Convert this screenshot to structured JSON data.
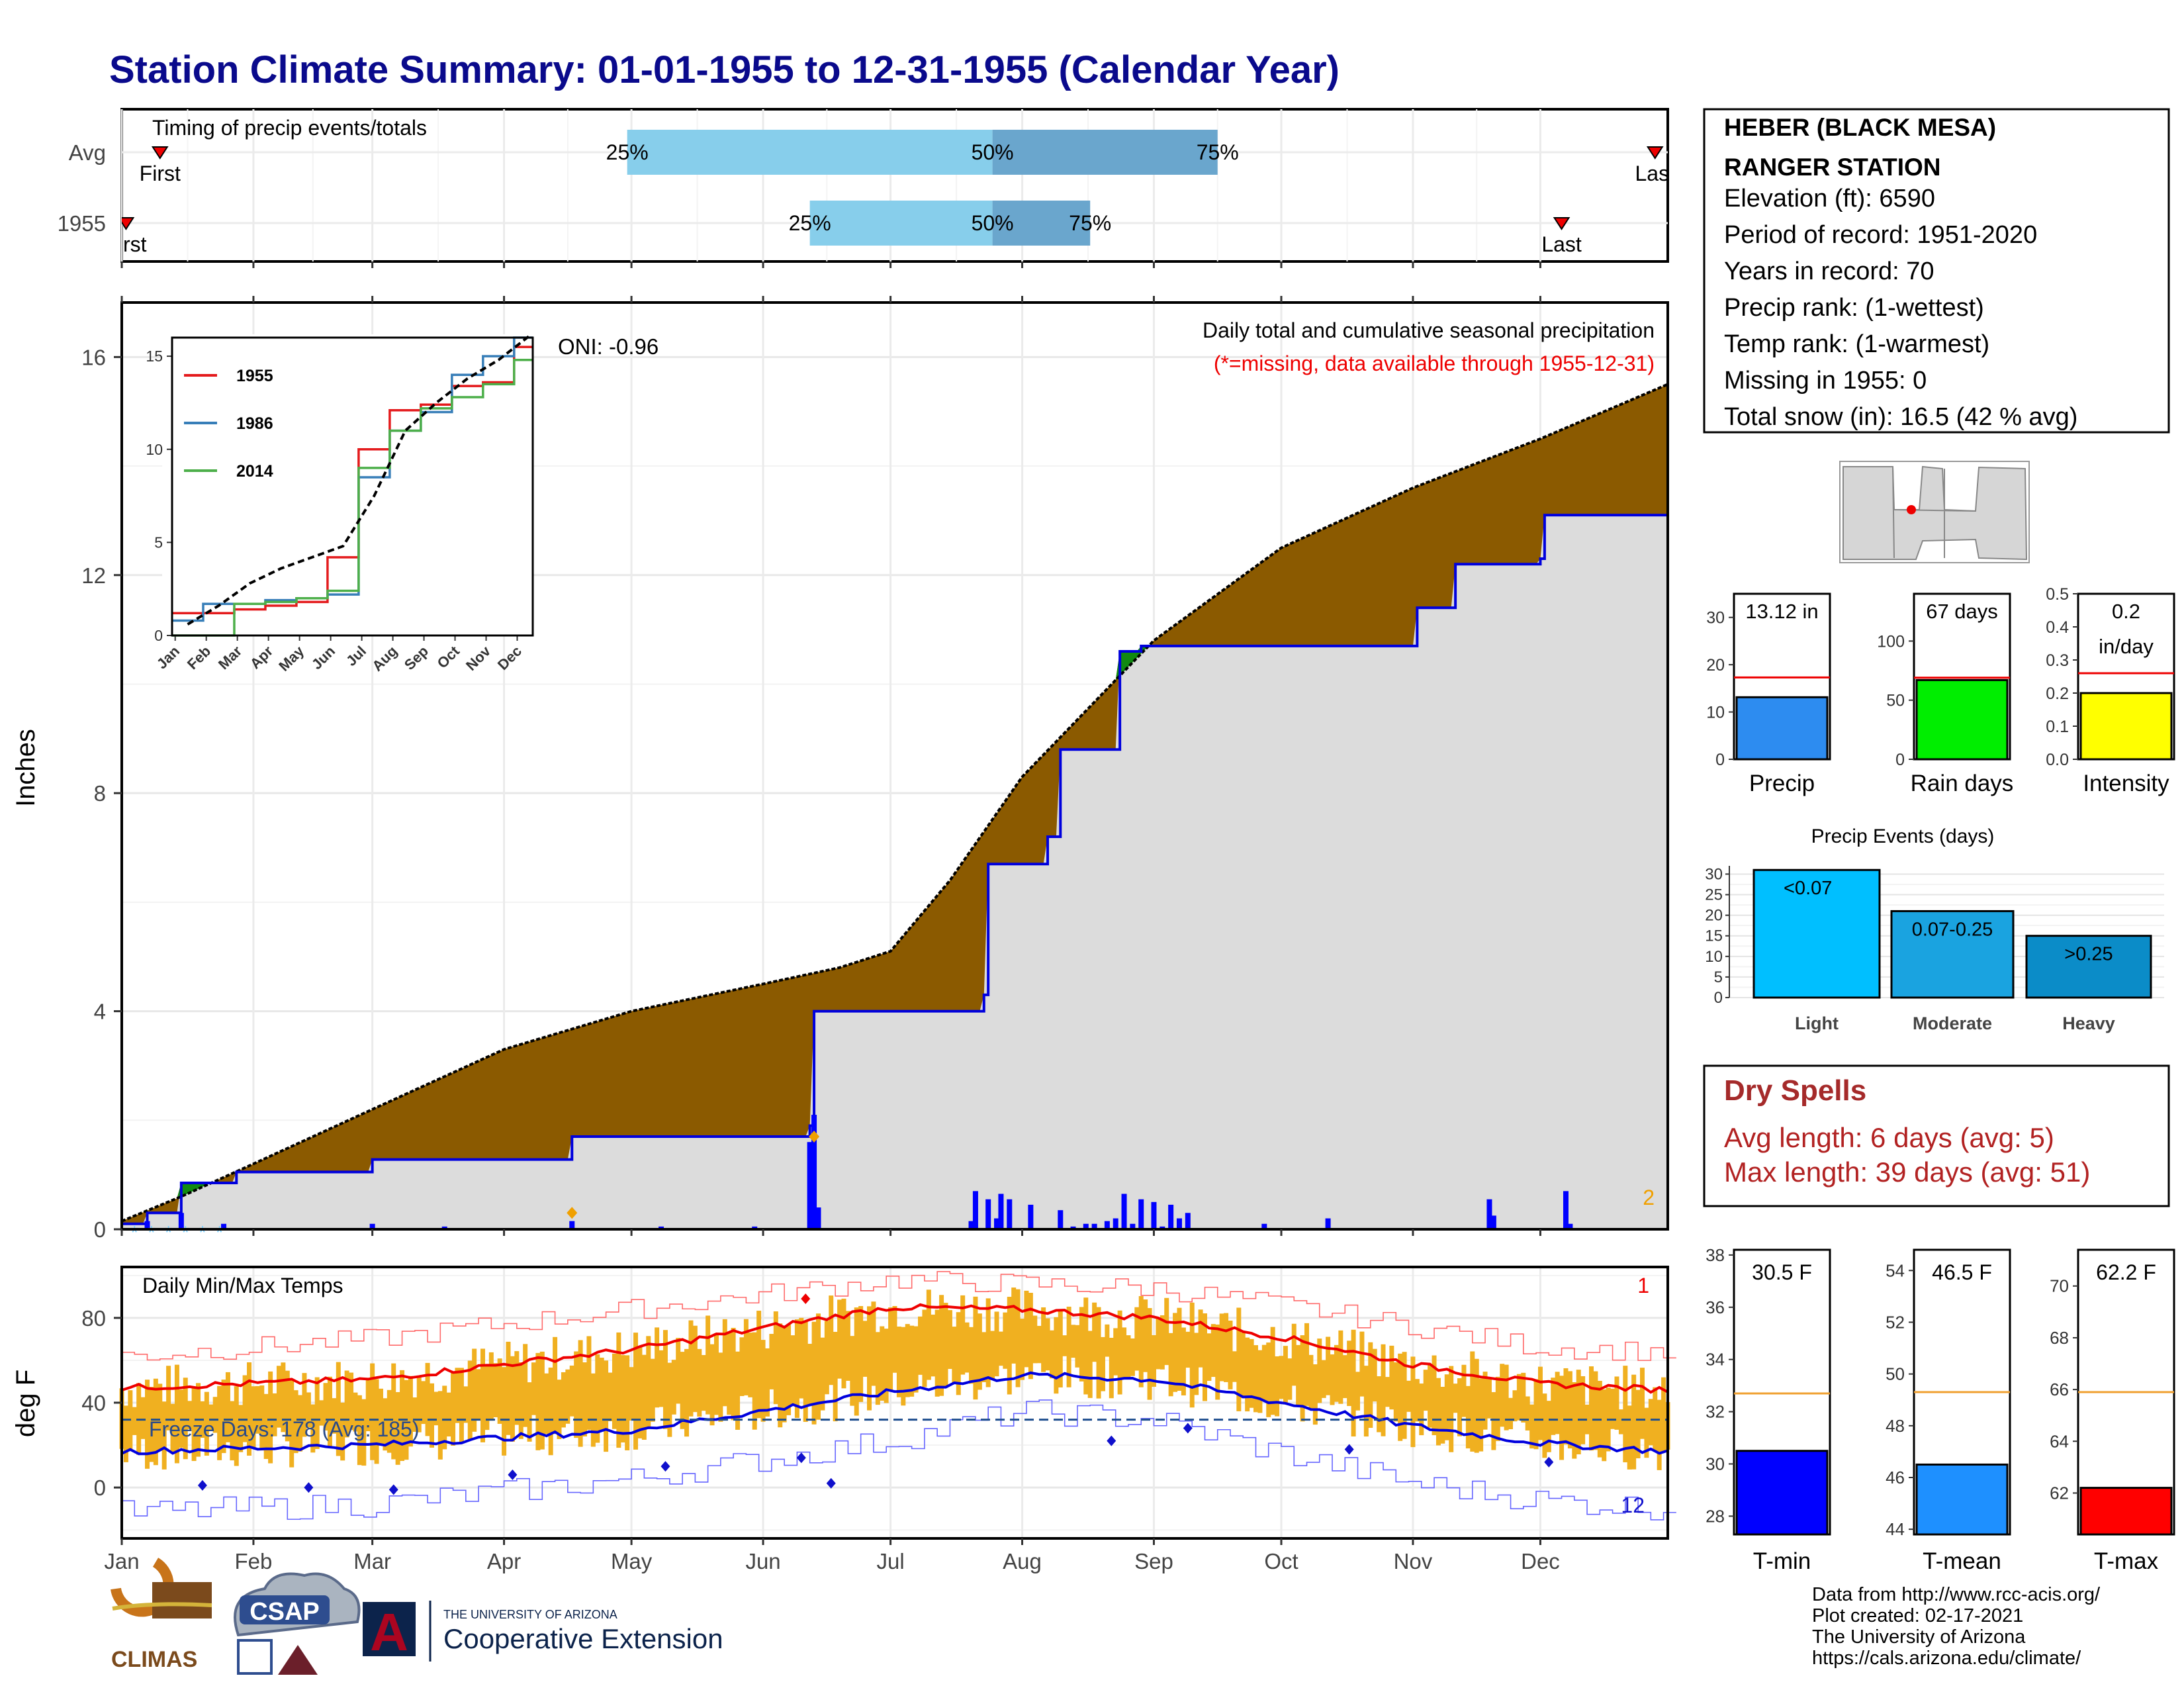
{
  "page": {
    "title": "Station Climate Summary: 01-01-1955 to 12-31-1955 (Calendar Year)"
  },
  "station": {
    "name_line1": "HEBER (BLACK MESA)",
    "name_line2": "RANGER STATION",
    "elevation": "Elevation (ft): 6590",
    "period": "Period of record: 1951-2020",
    "years": "Years in record: 70",
    "precip_rank": "Precip rank:  (1-wettest)",
    "temp_rank": "Temp rank:  (1-warmest)",
    "missing": "Missing in 1955: 0",
    "snow": "Total snow (in): 16.5 (42 % avg)"
  },
  "timing": {
    "label": "Timing of precip events/totals",
    "row_labels": [
      "Avg",
      "1955"
    ],
    "first_label": "First",
    "last_label": "Last",
    "pct_labels": [
      "25%",
      "50%",
      "75%"
    ],
    "avg": {
      "first": "01-10",
      "p25": "04-30",
      "p50": "07-25",
      "p75": "09-16",
      "last": "12-28"
    },
    "year": {
      "first": "01-02",
      "p25": "06-12",
      "p50": "07-25",
      "p75": "08-17",
      "last": "12-06"
    }
  },
  "precip_panel": {
    "title": "Daily total and cumulative seasonal precipitation",
    "subtitle": "(*=missing, data available through 1955-12-31)",
    "oni": "ONI: -0.96",
    "corner_value": "2",
    "ylabel": "Inches",
    "yticks": [
      "0",
      "4",
      "8",
      "12",
      "16"
    ]
  },
  "inset": {
    "yticks": [
      "0",
      "5",
      "10",
      "15"
    ],
    "xticks": [
      "Jan",
      "Feb",
      "Mar",
      "Apr",
      "May",
      "Jun",
      "Jul",
      "Aug",
      "Sep",
      "Oct",
      "Nov",
      "Dec"
    ],
    "legend": [
      "1955",
      "1986",
      "2014"
    ]
  },
  "temp_panel": {
    "title": "Daily Min/Max Temps",
    "freeze": "Freeze Days: 178 (Avg: 185)",
    "corner_top": "1",
    "corner_bottom": "12",
    "ylabel": "deg F",
    "yticks": [
      "0",
      "40",
      "80"
    ]
  },
  "months": [
    "Jan",
    "Feb",
    "Mar",
    "Apr",
    "May",
    "Jun",
    "Jul",
    "Aug",
    "Sep",
    "Oct",
    "Nov",
    "Dec"
  ],
  "mini_bars": [
    {
      "label": "Precip",
      "value_text": "13.12 in",
      "value": 13.12,
      "avg": 17.3,
      "ymax": 35,
      "ticks": [
        "0",
        "10",
        "20",
        "30"
      ],
      "color": "#2d8cf0"
    },
    {
      "label": "Rain days",
      "value_text": "67 days",
      "value": 67,
      "avg": 69,
      "ymax": 140,
      "ticks": [
        "0",
        "50",
        "100"
      ],
      "color": "#00ee00"
    },
    {
      "label": "Intensity",
      "value_text": "0.2",
      "value_text2": "in/day",
      "value": 0.2,
      "avg": 0.26,
      "ymax": 0.5,
      "ticks": [
        "0.0",
        "0.1",
        "0.2",
        "0.3",
        "0.4",
        "0.5"
      ],
      "color": "#ffff00"
    }
  ],
  "events": {
    "title": "Precip Events (days)",
    "categories": [
      "Light",
      "Moderate",
      "Heavy"
    ],
    "bar_labels": [
      "<0.07",
      "0.07-0.25",
      ">0.25"
    ],
    "values": [
      31,
      21,
      15
    ],
    "ticks": [
      "0",
      "5",
      "10",
      "15",
      "20",
      "25",
      "30"
    ],
    "colors": [
      "#00bfff",
      "#1aa3e0",
      "#0b8cc8"
    ]
  },
  "dry": {
    "title": "Dry Spells",
    "avg": "Avg length: 6 days (avg: 5)",
    "max": "Max length: 39 days (avg: 51)"
  },
  "temp_bars": [
    {
      "label": "T-min",
      "value_text": "30.5 F",
      "value": 30.5,
      "avg": 32.7,
      "ymin": 27.3,
      "ymax": 38.2,
      "ticks": [
        "28",
        "30",
        "32",
        "34",
        "36",
        "38"
      ],
      "color": "#0000ff"
    },
    {
      "label": "T-mean",
      "value_text": "46.5 F",
      "value": 46.5,
      "avg": 49.3,
      "ymin": 43.8,
      "ymax": 54.8,
      "ticks": [
        "44",
        "46",
        "48",
        "50",
        "52",
        "54"
      ],
      "color": "#1e90ff"
    },
    {
      "label": "T-max",
      "value_text": "62.2 F",
      "value": 62.2,
      "avg": 65.9,
      "ymin": 60.4,
      "ymax": 71.4,
      "ticks": [
        "62",
        "64",
        "66",
        "68",
        "70"
      ],
      "color": "#ff0000"
    }
  ],
  "footer": {
    "line1": "Data from http://www.rcc-acis.org/",
    "line2": "Plot created: 02-17-2021",
    "line3": "The University of Arizona",
    "line4": "https://cals.arizona.edu/climate/"
  },
  "logos": {
    "climas": "CLIMAS",
    "csap": "CSAP",
    "ua_small": "THE UNIVERSITY OF ARIZONA",
    "ua_big": "Cooperative Extension",
    "ua_letter": "A"
  },
  "chart_data": [
    {
      "type": "area",
      "title": "Daily total and cumulative seasonal precipitation",
      "ylabel": "Inches",
      "ylim": [
        0,
        17
      ],
      "x_unit": "day of year 1955",
      "series": [
        {
          "name": "cumulative average",
          "x": [
            1,
            15,
            32,
            60,
            91,
            121,
            152,
            170,
            182,
            196,
            213,
            244,
            274,
            305,
            335,
            365
          ],
          "values": [
            0.15,
            0.6,
            1.2,
            2.2,
            3.3,
            4.0,
            4.5,
            4.8,
            5.1,
            6.4,
            8.3,
            10.8,
            12.5,
            13.6,
            14.5,
            15.5
          ]
        },
        {
          "name": "cumulative 1955",
          "x": [
            1,
            7,
            15,
            28,
            60,
            107,
            163,
            164,
            196,
            204,
            205,
            219,
            222,
            236,
            241,
            306,
            315,
            335,
            336,
            365
          ],
          "values": [
            0.1,
            0.3,
            0.85,
            1.05,
            1.28,
            1.7,
            1.9,
            4.0,
            4.0,
            4.3,
            6.7,
            7.2,
            8.8,
            10.6,
            10.7,
            11.4,
            12.2,
            12.3,
            13.1,
            13.12
          ]
        }
      ]
    },
    {
      "type": "line",
      "title": "",
      "ylim": [
        0,
        16
      ],
      "series": [
        {
          "name": "1955",
          "x": [
            "01",
            "02",
            "03",
            "04",
            "05",
            "06",
            "07",
            "08",
            "09",
            "10",
            "11",
            "12"
          ],
          "values": [
            1.2,
            1.2,
            1.4,
            1.6,
            1.8,
            4.2,
            10.0,
            12.1,
            12.4,
            13.4,
            13.6,
            15.5
          ]
        },
        {
          "name": "1986",
          "x": [
            "01",
            "02",
            "03",
            "04",
            "05",
            "06",
            "07",
            "08",
            "09",
            "10",
            "11",
            "12"
          ],
          "values": [
            0.8,
            1.7,
            1.7,
            1.9,
            2.0,
            2.2,
            8.5,
            11.0,
            12.0,
            14.0,
            15.0,
            16.0
          ]
        },
        {
          "name": "2014",
          "x": [
            "01",
            "02",
            "03",
            "04",
            "05",
            "06",
            "07",
            "08",
            "09",
            "10",
            "11",
            "12"
          ],
          "values": [
            0.0,
            0.0,
            1.7,
            1.8,
            2.0,
            2.4,
            9.0,
            11.0,
            12.2,
            12.8,
            13.5,
            14.8
          ]
        },
        {
          "name": "average",
          "x": [
            "01",
            "02",
            "03",
            "04",
            "05",
            "06",
            "07",
            "08",
            "09",
            "10",
            "11",
            "12"
          ],
          "values": [
            0.6,
            1.6,
            2.8,
            3.6,
            4.2,
            4.8,
            7.5,
            11.0,
            12.5,
            13.8,
            14.8,
            16.1
          ]
        }
      ]
    },
    {
      "type": "line",
      "title": "Daily Min/Max Temps",
      "ylabel": "deg F",
      "ylim": [
        -24,
        104
      ],
      "series": [
        {
          "name": "avg max",
          "x": [
            1,
            60,
            121,
            182,
            213,
            244,
            274,
            305,
            335,
            365
          ],
          "values": [
            47,
            51,
            65,
            85,
            84,
            80,
            71,
            58,
            49,
            46
          ]
        },
        {
          "name": "avg min",
          "x": [
            1,
            60,
            121,
            182,
            213,
            244,
            274,
            305,
            335,
            365
          ],
          "values": [
            17,
            20,
            27,
            45,
            53,
            51,
            40,
            29,
            21,
            17
          ]
        },
        {
          "name": "record max",
          "x": [
            1,
            60,
            121,
            182,
            213,
            244,
            274,
            305,
            335,
            365
          ],
          "values": [
            62,
            70,
            84,
            98,
            96,
            94,
            86,
            76,
            66,
            64
          ]
        },
        {
          "name": "record min",
          "x": [
            1,
            60,
            121,
            182,
            213,
            244,
            274,
            305,
            335,
            365
          ],
          "values": [
            -12,
            -8,
            4,
            22,
            36,
            32,
            16,
            2,
            -6,
            -10
          ]
        }
      ]
    },
    {
      "type": "bar",
      "categories": [
        "Light",
        "Moderate",
        "Heavy"
      ],
      "values": [
        31,
        21,
        15
      ],
      "title": "Precip Events (days)"
    }
  ]
}
